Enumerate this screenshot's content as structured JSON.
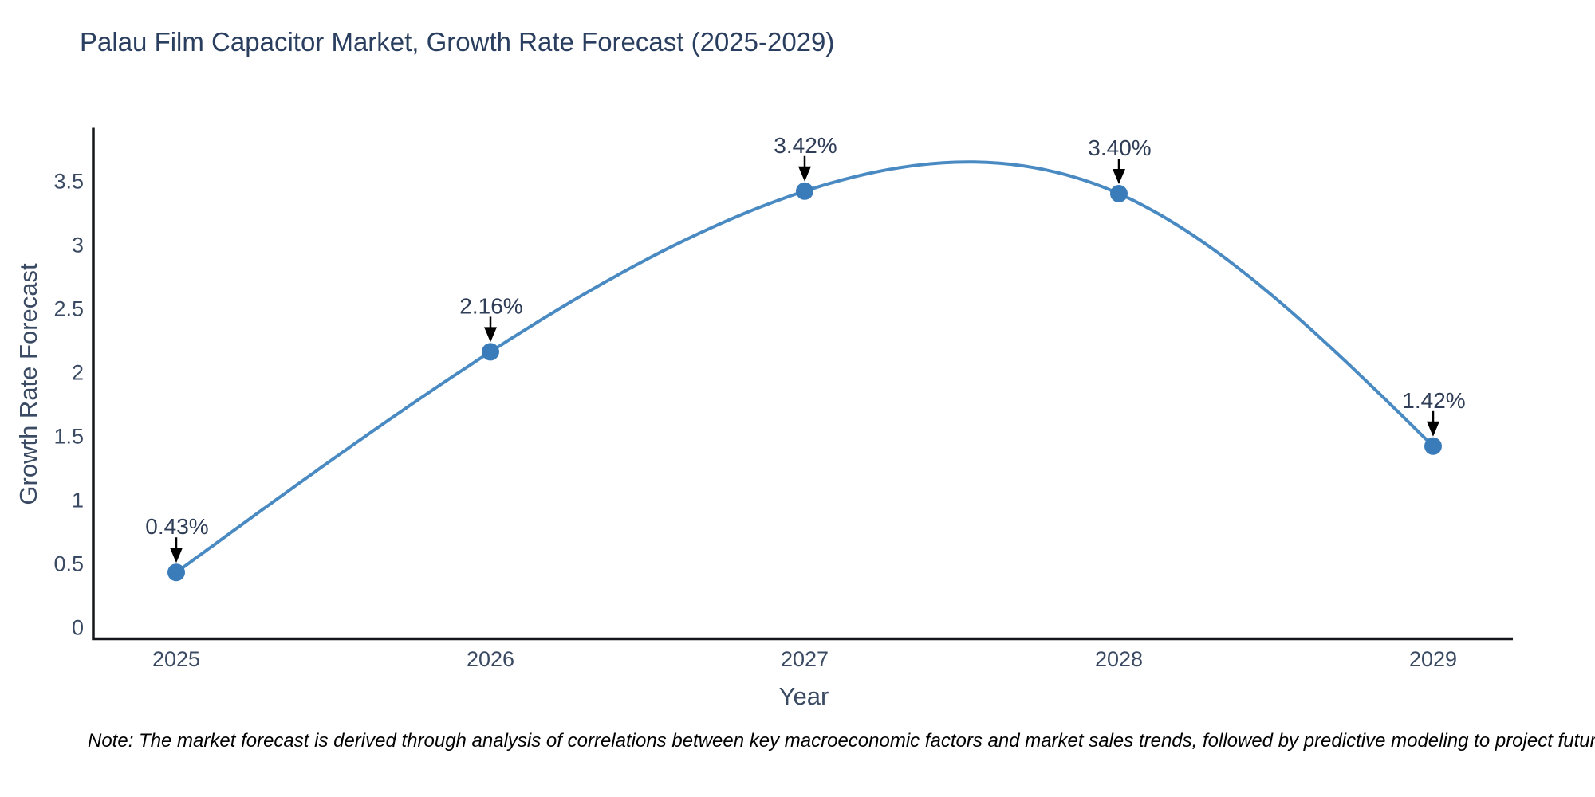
{
  "chart_data": {
    "type": "line",
    "title": "Palau Film Capacitor Market, Growth Rate Forecast (2025-2029)",
    "xlabel": "Year",
    "ylabel": "Growth Rate Forecast",
    "x": [
      "2025",
      "2026",
      "2027",
      "2028",
      "2029"
    ],
    "values": [
      0.43,
      2.16,
      3.42,
      3.4,
      1.42
    ],
    "point_labels": [
      "0.43%",
      "2.16%",
      "3.42%",
      "3.40%",
      "1.42%"
    ],
    "yticks": [
      0,
      0.5,
      1,
      1.5,
      2,
      2.5,
      3,
      3.5
    ],
    "ytick_labels": [
      "0",
      "0.5",
      "1",
      "1.5",
      "2",
      "2.5",
      "3",
      "3.5"
    ],
    "ylim": [
      -0.09,
      3.93
    ],
    "grid": false,
    "line_shape": "spline",
    "legend": "none",
    "note": "Note: The market forecast is derived through analysis of correlations between key macroeconomic factors and market sales trends, followed by predictive modeling to project future sales",
    "colors": {
      "line": "#4a8ac2",
      "marker": "#3a7cba",
      "axis": "#14161c",
      "title_text": "#2a3f5f",
      "tick_text": "#3a4a63",
      "arrow": "#000000",
      "note_text": "#000000",
      "background": "#ffffff"
    }
  }
}
